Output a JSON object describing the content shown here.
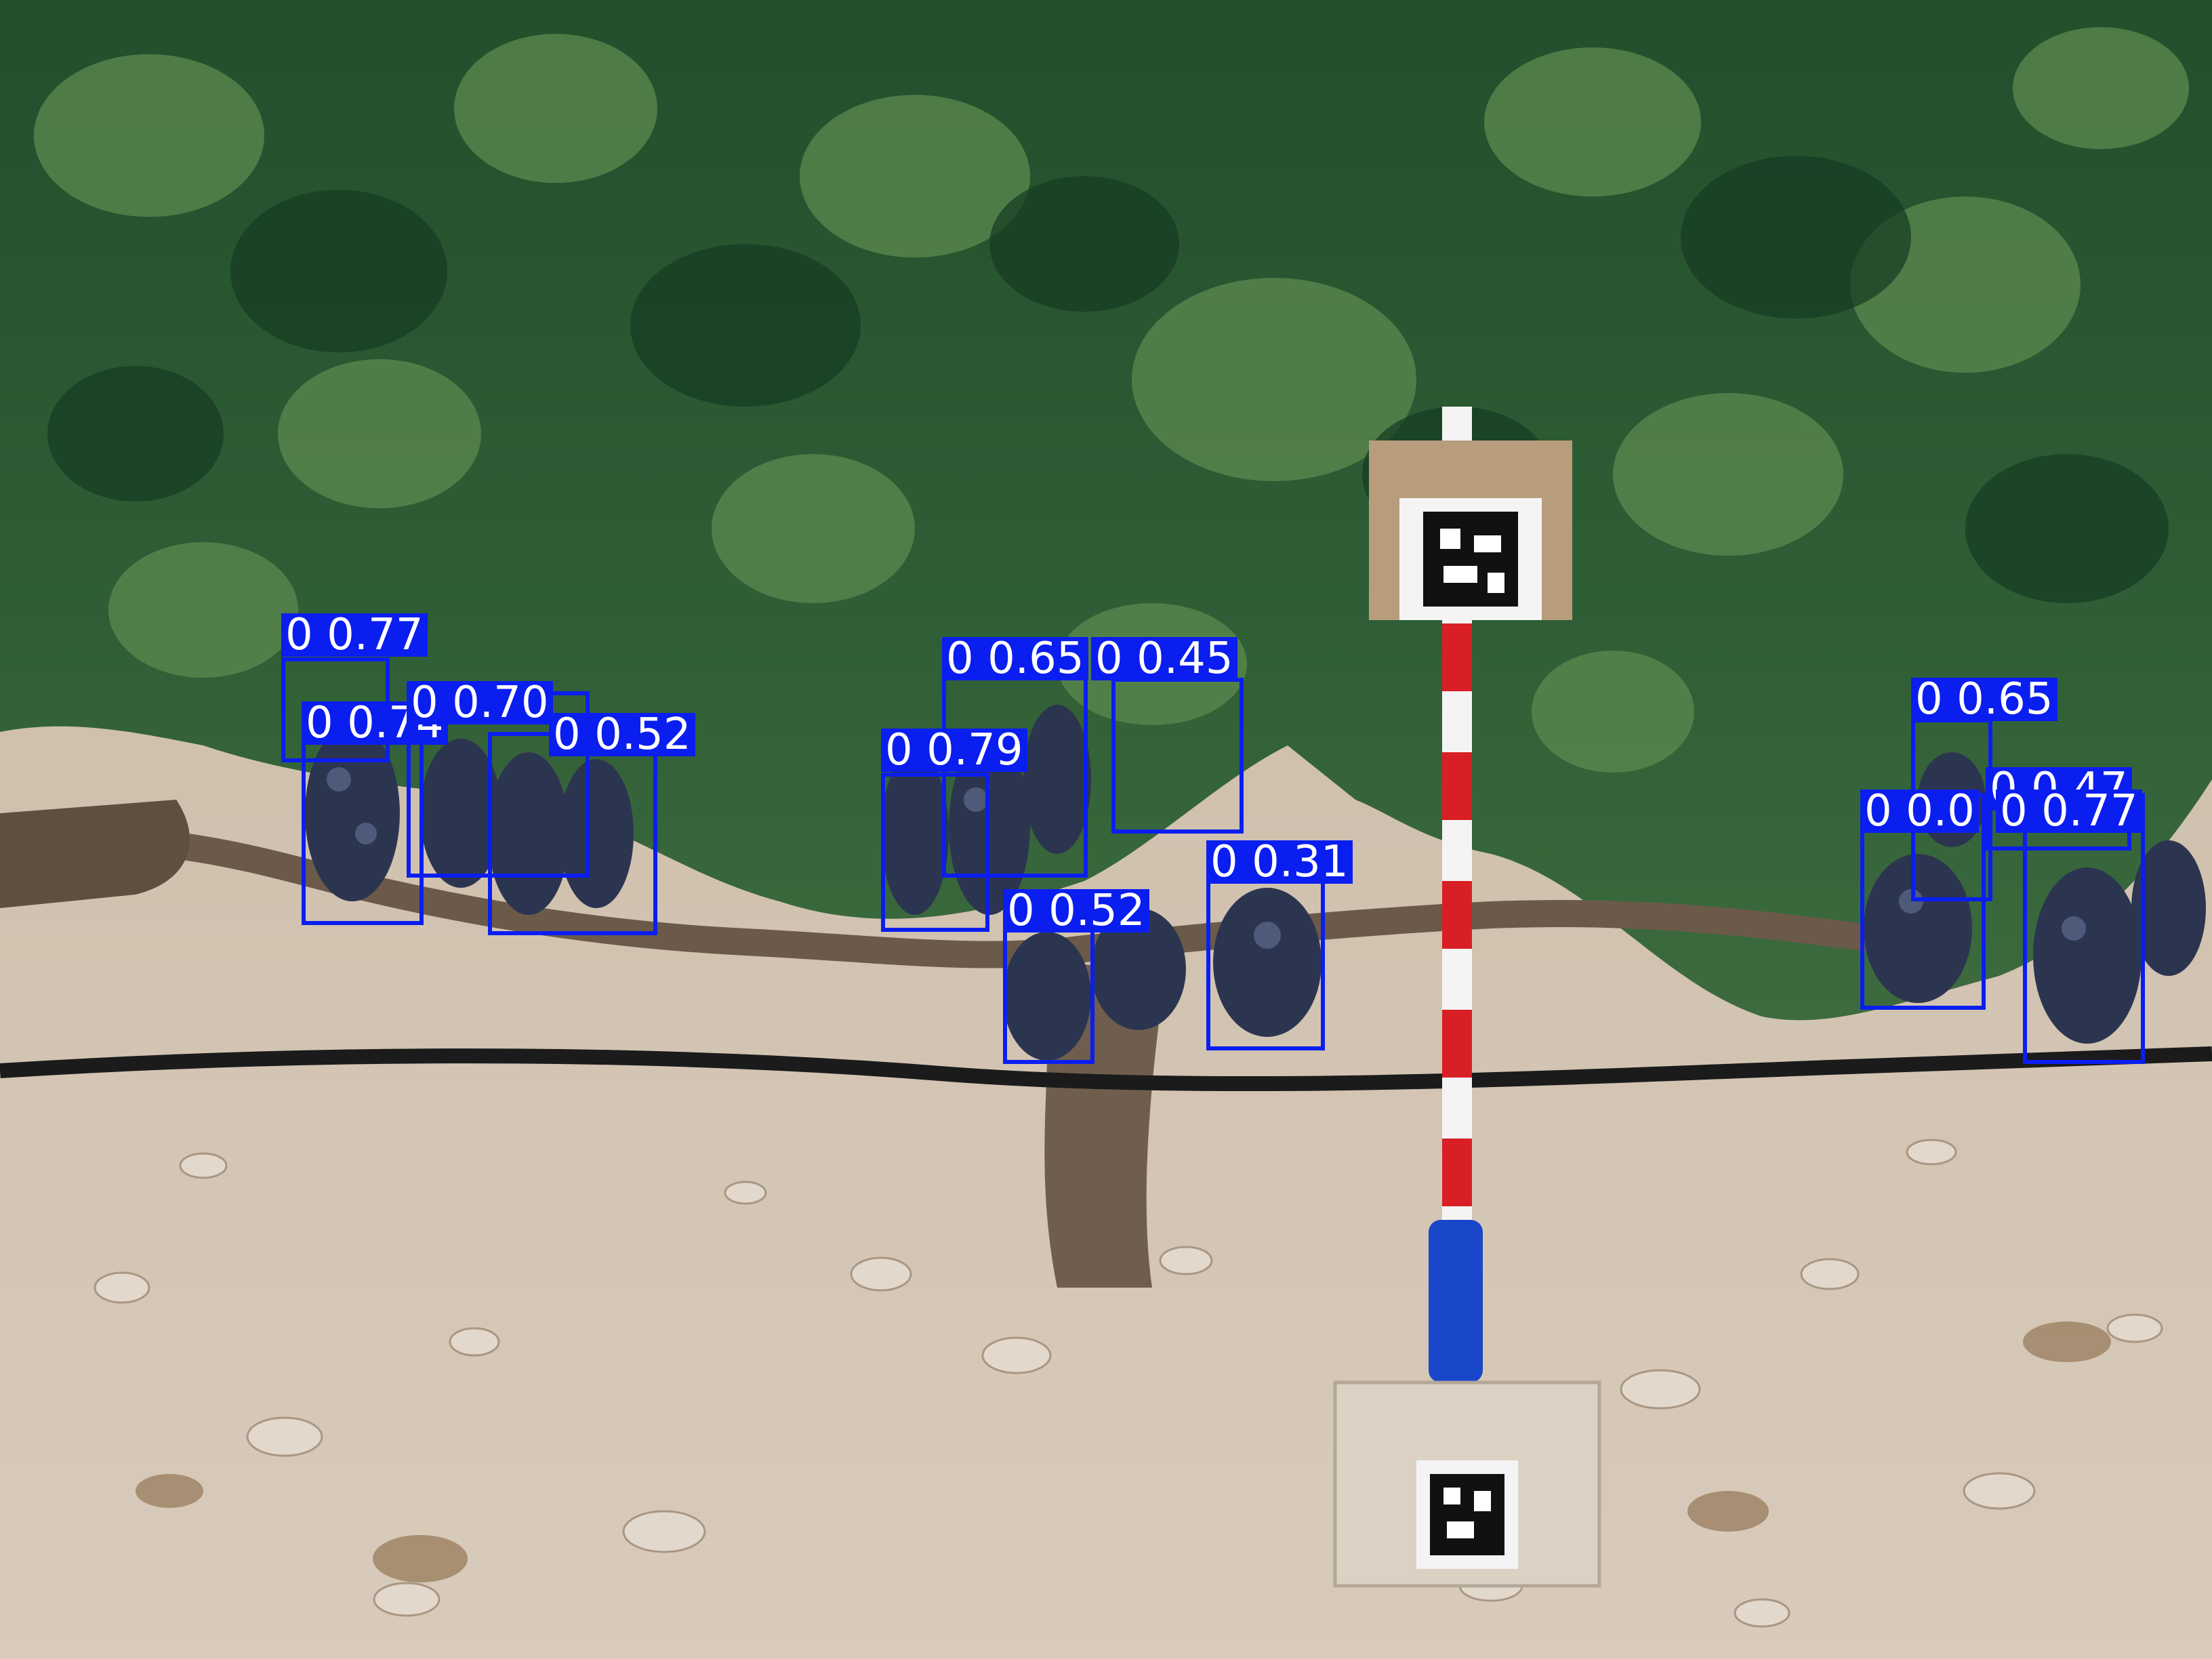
{
  "scene": {
    "description_colors": {
      "foliage_dark": "#1f4a2a",
      "foliage_light": "#4e7d45",
      "soil": "#cdbfae",
      "grape": "#2c3550",
      "box_color": "#0a1ef0",
      "pole_red": "#d81f25"
    }
  },
  "detections": [
    {
      "cls": "0",
      "conf": "0.77"
    },
    {
      "cls": "0",
      "conf": "0.74"
    },
    {
      "cls": "0",
      "conf": "0.70"
    },
    {
      "cls": "0",
      "conf": "0.52"
    },
    {
      "cls": "0",
      "conf": "0.65"
    },
    {
      "cls": "0",
      "conf": "0.45"
    },
    {
      "cls": "0",
      "conf": "0.79"
    },
    {
      "cls": "0",
      "conf": "0.52"
    },
    {
      "cls": "0",
      "conf": "0.31"
    },
    {
      "cls": "0",
      "conf": "0.65"
    },
    {
      "cls": "0",
      "conf": "0.47"
    },
    {
      "cls": "0",
      "conf": "0.0"
    },
    {
      "cls": "0",
      "conf": "0.77"
    }
  ]
}
